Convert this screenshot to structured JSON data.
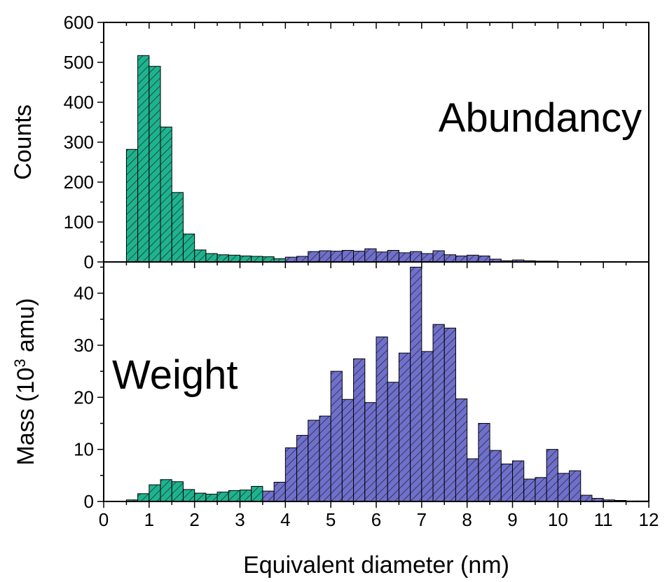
{
  "colors": {
    "small_particles": "#1eb38f",
    "large_particles": "#6f6fcc",
    "hatch": "#1a1a1a",
    "frame": "#000000"
  },
  "chart_data": [
    {
      "type": "bar",
      "panel": "top",
      "panel_label": "Abundancy",
      "ylabel": "Counts",
      "ylim": [
        0,
        600
      ],
      "yticks": [
        "0",
        "100",
        "200",
        "300",
        "400",
        "500",
        "600"
      ],
      "xlim": [
        0,
        12
      ],
      "bin_width": 0.25,
      "bins_start": [
        0.5,
        0.75,
        1.0,
        1.25,
        1.5,
        1.75,
        2.0,
        2.25,
        2.5,
        2.75,
        3.0,
        3.25,
        3.5,
        3.75,
        4.0,
        4.25,
        4.5,
        4.75,
        5.0,
        5.25,
        5.5,
        5.75,
        6.0,
        6.25,
        6.5,
        6.75,
        7.0,
        7.25,
        7.5,
        7.75,
        8.0,
        8.25,
        8.5,
        8.75,
        9.0,
        9.25,
        9.5,
        9.75,
        10.0,
        10.25,
        10.5,
        10.75,
        11.0,
        11.25,
        11.5,
        11.75
      ],
      "values": [
        282,
        517,
        490,
        338,
        174,
        70,
        30,
        21,
        18,
        17,
        15,
        14,
        13,
        8,
        12,
        14,
        26,
        28,
        27,
        29,
        27,
        33,
        25,
        29,
        23,
        26,
        21,
        28,
        18,
        15,
        17,
        15,
        7,
        3,
        5,
        3,
        2,
        2,
        1,
        1,
        1,
        1,
        1,
        1,
        1,
        0
      ],
      "green_until_index": 14
    },
    {
      "type": "bar",
      "panel": "bottom",
      "panel_label": "Weight",
      "ylabel": "Mass (10³ amu)",
      "ylabel_parts": {
        "pre": "Mass (10",
        "sup": "3",
        "post": " amu)"
      },
      "ylim": [
        0,
        46
      ],
      "yticks": [
        "0",
        "10",
        "20",
        "30",
        "40"
      ],
      "xlabel": "Equivalent diameter (nm)",
      "xticks": [
        "0",
        "1",
        "2",
        "3",
        "4",
        "5",
        "6",
        "7",
        "8",
        "9",
        "10",
        "11",
        "12"
      ],
      "xlim": [
        0,
        12
      ],
      "bin_width": 0.25,
      "bins_start": [
        0.5,
        0.75,
        1.0,
        1.25,
        1.5,
        1.75,
        2.0,
        2.25,
        2.5,
        2.75,
        3.0,
        3.25,
        3.5,
        3.75,
        4.0,
        4.25,
        4.5,
        4.75,
        5.0,
        5.25,
        5.5,
        5.75,
        6.0,
        6.25,
        6.5,
        6.75,
        7.0,
        7.25,
        7.5,
        7.75,
        8.0,
        8.25,
        8.5,
        8.75,
        9.0,
        9.25,
        9.5,
        9.75,
        10.0,
        10.25,
        10.5,
        10.75,
        11.0,
        11.25,
        11.5,
        11.75
      ],
      "values": [
        0.3,
        1.5,
        3.2,
        4.2,
        3.8,
        2.3,
        1.6,
        1.4,
        1.8,
        2.1,
        2.2,
        2.9,
        2.0,
        3.7,
        10.3,
        12.7,
        15.6,
        16.4,
        25.0,
        19.6,
        27.4,
        19.0,
        31.6,
        22.9,
        28.5,
        45.0,
        28.8,
        34.0,
        33.3,
        19.7,
        8.2,
        15.0,
        9.8,
        7.2,
        7.8,
        4.3,
        4.6,
        10.0,
        5.4,
        5.9,
        1.2,
        0.6,
        0.3,
        0.2,
        0.1,
        0.1
      ],
      "green_until_index": 12
    }
  ]
}
